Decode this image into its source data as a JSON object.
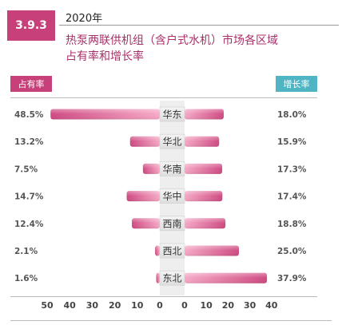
{
  "header": {
    "section": "3.9.3",
    "year": "2020年",
    "title_line1": "热泵两联供机组（含户式水机）市场各区域",
    "title_line2": "占有率和增长率"
  },
  "colors": {
    "share": "#c8407a",
    "growth": "#4fb5c4",
    "bar_light": "#f6a9c6",
    "bar_dark": "#cf4a82"
  },
  "chart_data": {
    "type": "bar",
    "categories": [
      "华东",
      "华北",
      "华南",
      "华中",
      "西南",
      "西北",
      "东北"
    ],
    "series": [
      {
        "name": "占有率",
        "values": [
          48.5,
          13.2,
          7.5,
          14.7,
          12.4,
          2.1,
          1.6
        ],
        "labels": [
          "48.5%",
          "13.2%",
          "7.5%",
          "14.7%",
          "12.4%",
          "2.1%",
          "1.6%"
        ]
      },
      {
        "name": "增长率",
        "values": [
          18.0,
          15.9,
          17.3,
          17.4,
          18.8,
          25.0,
          37.9
        ],
        "labels": [
          "18.0%",
          "15.9%",
          "17.3%",
          "17.4%",
          "18.8%",
          "25.0%",
          "37.9%"
        ]
      }
    ],
    "left_ticks": [
      "50",
      "40",
      "30",
      "20",
      "10",
      "0"
    ],
    "right_ticks": [
      "0",
      "10",
      "20",
      "30",
      "40"
    ],
    "left_range": [
      0,
      50
    ],
    "right_range": [
      0,
      40
    ]
  }
}
